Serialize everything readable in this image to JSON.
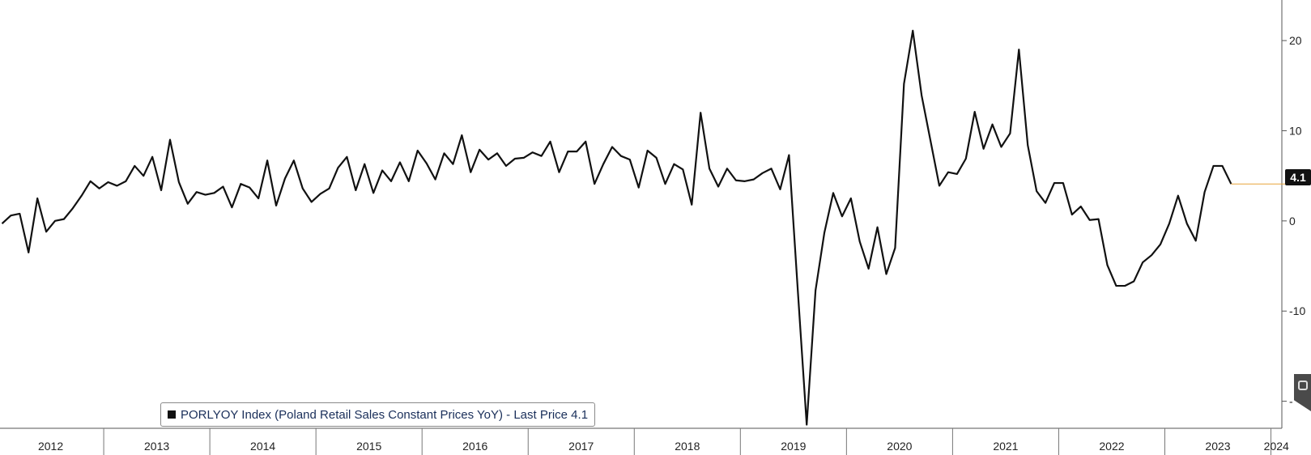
{
  "chart_data": {
    "type": "line",
    "title": "",
    "xlabel": "",
    "ylabel": "",
    "year_labels": [
      "2012",
      "2013",
      "2014",
      "2015",
      "2016",
      "2017",
      "2018",
      "2019",
      "2020",
      "2021",
      "2022",
      "2023",
      "2024"
    ],
    "y_ticks": [
      {
        "value": 20,
        "label": "20"
      },
      {
        "value": 10,
        "label": "10"
      },
      {
        "value": 0,
        "label": "0"
      },
      {
        "value": -10,
        "label": "-10"
      },
      {
        "value": -20,
        "label": "-"
      }
    ],
    "ylim": [
      -23,
      24.5
    ],
    "x_start": "2012-01",
    "series": [
      {
        "name": "PORLYOY Index (Poland Retail Sales Constant Prices YoY)",
        "color": "#111111",
        "values": [
          -0.3,
          0.6,
          0.8,
          -3.5,
          2.5,
          -1.2,
          0.0,
          0.2,
          1.4,
          2.8,
          4.4,
          3.6,
          4.3,
          3.9,
          4.4,
          6.1,
          5.0,
          7.1,
          3.4,
          9.0,
          4.3,
          1.9,
          3.2,
          2.9,
          3.1,
          3.8,
          1.5,
          4.1,
          3.7,
          2.5,
          6.7,
          1.7,
          4.7,
          6.7,
          3.6,
          2.1,
          3.0,
          3.6,
          5.9,
          7.1,
          3.4,
          6.3,
          3.1,
          5.6,
          4.4,
          6.5,
          4.4,
          7.8,
          6.4,
          4.6,
          7.5,
          6.3,
          9.5,
          5.4,
          7.9,
          6.8,
          7.5,
          6.1,
          6.9,
          7.0,
          7.6,
          7.2,
          8.8,
          5.4,
          7.7,
          7.7,
          8.8,
          4.1,
          6.3,
          8.2,
          7.2,
          6.8,
          3.7,
          7.8,
          7.0,
          4.1,
          6.3,
          5.7,
          1.8,
          12.0,
          5.8,
          3.8,
          5.8,
          4.5,
          4.4,
          4.6,
          5.3,
          5.8,
          3.5,
          7.3,
          -7.8,
          -22.6,
          -7.7,
          -1.3,
          3.1,
          0.5,
          2.5,
          -2.3,
          -5.3,
          -0.7,
          -5.9,
          -3.0,
          15.2,
          21.1,
          13.9,
          8.9,
          3.9,
          5.4,
          5.2,
          6.9,
          12.1,
          8.0,
          10.7,
          8.2,
          9.7,
          19.0,
          8.4,
          3.3,
          2.0,
          4.2,
          4.2,
          0.7,
          1.6,
          0.1,
          0.2,
          -4.9,
          -7.2,
          -7.2,
          -6.7,
          -4.6,
          -3.8,
          -2.6,
          -0.3,
          2.8,
          -0.3,
          -2.2,
          3.2,
          6.1,
          6.1,
          4.1
        ]
      }
    ],
    "last_value": 4.1,
    "grid": false,
    "legend_position": "bottom-left"
  },
  "legend": {
    "text": "PORLYOY Index (Poland Retail Sales Constant Prices YoY) - Last Price 4.1"
  },
  "last_price_tag": "4.1"
}
